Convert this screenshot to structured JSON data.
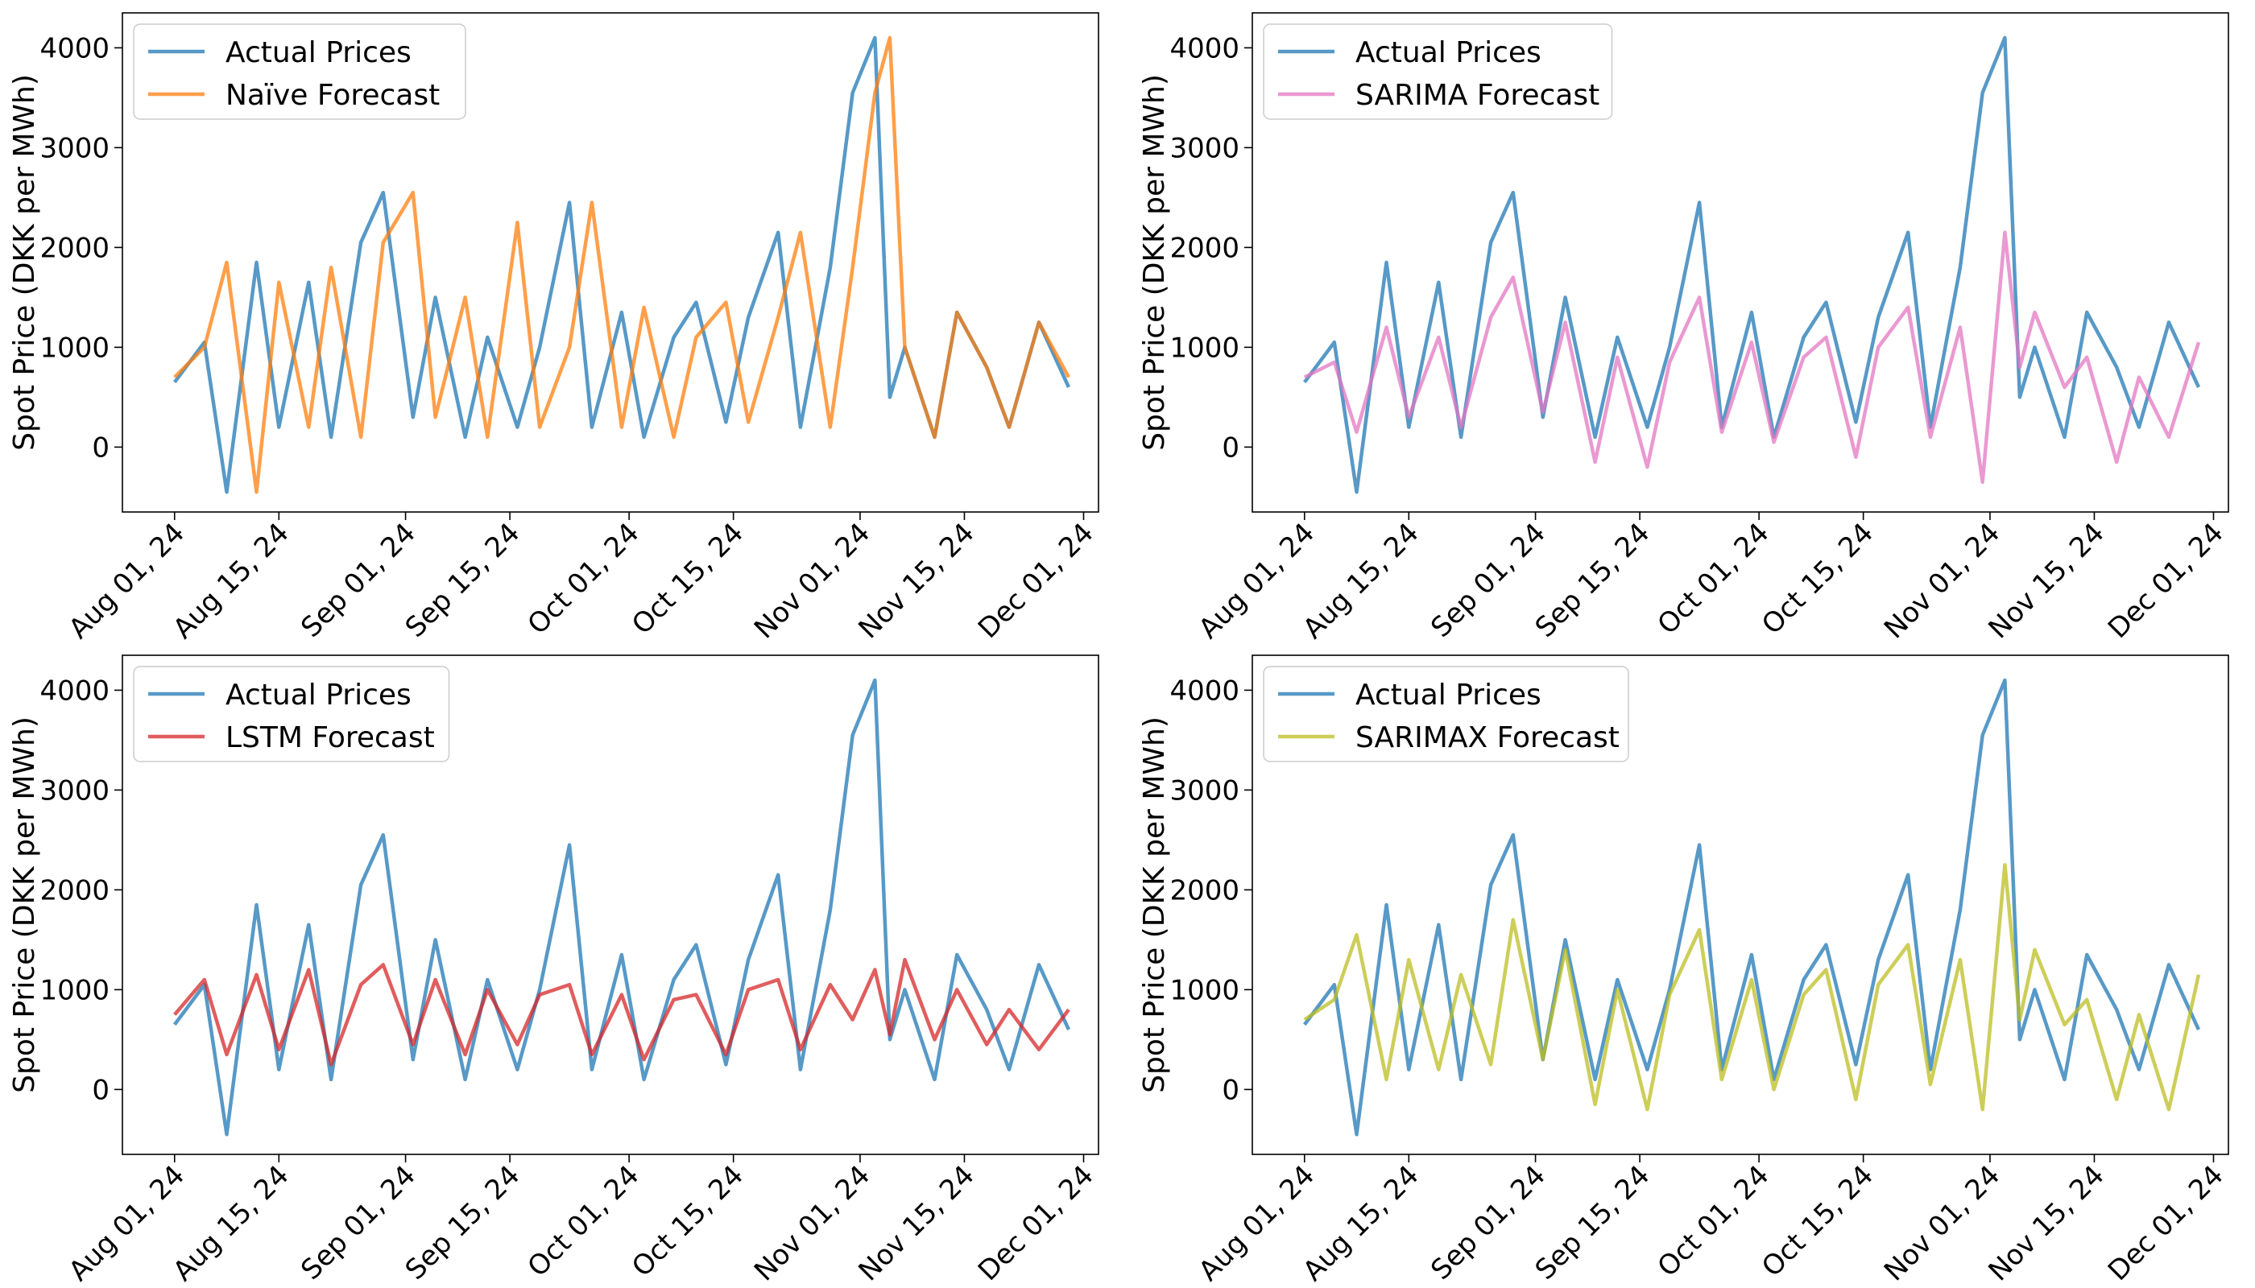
{
  "chart_data": [
    {
      "type": "line",
      "ylabel": "Spot Price (DKK per MWh)",
      "xlabel": "",
      "yticks": [
        0,
        1000,
        2000,
        3000,
        4000
      ],
      "ylim": [
        -650,
        4350
      ],
      "xticks": [
        "Aug 01, 24",
        "Aug 15, 24",
        "Sep 01, 24",
        "Sep 15, 24",
        "Oct 01, 24",
        "Oct 15, 24",
        "Nov 01, 24",
        "Nov 15, 24",
        "Dec 01, 24"
      ],
      "x_range": [
        "2024-07-25",
        "2024-12-03"
      ],
      "legend_position": "upper-left",
      "x": [
        "2024-08-01",
        "2024-08-05",
        "2024-08-08",
        "2024-08-12",
        "2024-08-15",
        "2024-08-19",
        "2024-08-22",
        "2024-08-26",
        "2024-08-29",
        "2024-09-02",
        "2024-09-05",
        "2024-09-09",
        "2024-09-12",
        "2024-09-16",
        "2024-09-19",
        "2024-09-23",
        "2024-09-26",
        "2024-09-30",
        "2024-10-03",
        "2024-10-07",
        "2024-10-10",
        "2024-10-14",
        "2024-10-17",
        "2024-10-21",
        "2024-10-24",
        "2024-10-28",
        "2024-10-31",
        "2024-11-03",
        "2024-11-05",
        "2024-11-07",
        "2024-11-11",
        "2024-11-14",
        "2024-11-18",
        "2024-11-21",
        "2024-11-25",
        "2024-11-29"
      ],
      "series": [
        {
          "name": "Actual Prices",
          "color": "#1f77b4",
          "values": [
            650,
            1050,
            -450,
            1850,
            200,
            1650,
            100,
            2050,
            2550,
            300,
            1500,
            100,
            1100,
            200,
            1000,
            2450,
            200,
            1350,
            100,
            1100,
            1450,
            250,
            1300,
            2150,
            200,
            1800,
            3550,
            4100,
            500,
            1000,
            100,
            1350,
            800,
            200,
            1250,
            600
          ]
        },
        {
          "name": "Naïve Forecast",
          "color": "#ff7f0e",
          "values": [
            700,
            1000,
            1850,
            -450,
            1650,
            200,
            1800,
            100,
            2050,
            2550,
            300,
            1500,
            100,
            2250,
            200,
            1000,
            2450,
            200,
            1400,
            100,
            1100,
            1450,
            250,
            1300,
            2150,
            200,
            1800,
            3550,
            4100,
            1000,
            100,
            1350,
            800,
            200,
            1250,
            700
          ]
        }
      ]
    },
    {
      "type": "line",
      "ylabel": "Spot Price (DKK per MWh)",
      "xlabel": "",
      "yticks": [
        0,
        1000,
        2000,
        3000,
        4000
      ],
      "ylim": [
        -650,
        4350
      ],
      "xticks": [
        "Aug 01, 24",
        "Aug 15, 24",
        "Sep 01, 24",
        "Sep 15, 24",
        "Oct 01, 24",
        "Oct 15, 24",
        "Nov 01, 24",
        "Nov 15, 24",
        "Dec 01, 24"
      ],
      "x_range": [
        "2024-07-25",
        "2024-12-03"
      ],
      "legend_position": "upper-left",
      "x": [
        "2024-08-01",
        "2024-08-05",
        "2024-08-08",
        "2024-08-12",
        "2024-08-15",
        "2024-08-19",
        "2024-08-22",
        "2024-08-26",
        "2024-08-29",
        "2024-09-02",
        "2024-09-05",
        "2024-09-09",
        "2024-09-12",
        "2024-09-16",
        "2024-09-19",
        "2024-09-23",
        "2024-09-26",
        "2024-09-30",
        "2024-10-03",
        "2024-10-07",
        "2024-10-10",
        "2024-10-14",
        "2024-10-17",
        "2024-10-21",
        "2024-10-24",
        "2024-10-28",
        "2024-10-31",
        "2024-11-03",
        "2024-11-05",
        "2024-11-07",
        "2024-11-11",
        "2024-11-14",
        "2024-11-18",
        "2024-11-21",
        "2024-11-25",
        "2024-11-29"
      ],
      "series": [
        {
          "name": "Actual Prices",
          "color": "#1f77b4",
          "values": [
            650,
            1050,
            -450,
            1850,
            200,
            1650,
            100,
            2050,
            2550,
            300,
            1500,
            100,
            1100,
            200,
            1000,
            2450,
            200,
            1350,
            100,
            1100,
            1450,
            250,
            1300,
            2150,
            200,
            1800,
            3550,
            4100,
            500,
            1000,
            100,
            1350,
            800,
            200,
            1250,
            600
          ]
        },
        {
          "name": "SARIMA Forecast",
          "color": "#e377c2",
          "values": [
            700,
            850,
            150,
            1200,
            300,
            1100,
            200,
            1300,
            1700,
            350,
            1250,
            -150,
            900,
            -200,
            850,
            1500,
            150,
            1050,
            50,
            900,
            1100,
            -100,
            1000,
            1400,
            100,
            1200,
            -350,
            2150,
            800,
            1350,
            600,
            900,
            -150,
            700,
            100,
            1050
          ]
        }
      ]
    },
    {
      "type": "line",
      "ylabel": "Spot Price (DKK per MWh)",
      "xlabel": "",
      "yticks": [
        0,
        1000,
        2000,
        3000,
        4000
      ],
      "ylim": [
        -650,
        4350
      ],
      "xticks": [
        "Aug 01, 24",
        "Aug 15, 24",
        "Sep 01, 24",
        "Sep 15, 24",
        "Oct 01, 24",
        "Oct 15, 24",
        "Nov 01, 24",
        "Nov 15, 24",
        "Dec 01, 24"
      ],
      "x_range": [
        "2024-07-25",
        "2024-12-03"
      ],
      "legend_position": "upper-left",
      "x": [
        "2024-08-01",
        "2024-08-05",
        "2024-08-08",
        "2024-08-12",
        "2024-08-15",
        "2024-08-19",
        "2024-08-22",
        "2024-08-26",
        "2024-08-29",
        "2024-09-02",
        "2024-09-05",
        "2024-09-09",
        "2024-09-12",
        "2024-09-16",
        "2024-09-19",
        "2024-09-23",
        "2024-09-26",
        "2024-09-30",
        "2024-10-03",
        "2024-10-07",
        "2024-10-10",
        "2024-10-14",
        "2024-10-17",
        "2024-10-21",
        "2024-10-24",
        "2024-10-28",
        "2024-10-31",
        "2024-11-03",
        "2024-11-05",
        "2024-11-07",
        "2024-11-11",
        "2024-11-14",
        "2024-11-18",
        "2024-11-21",
        "2024-11-25",
        "2024-11-29"
      ],
      "series": [
        {
          "name": "Actual Prices",
          "color": "#1f77b4",
          "values": [
            650,
            1050,
            -450,
            1850,
            200,
            1650,
            100,
            2050,
            2550,
            300,
            1500,
            100,
            1100,
            200,
            1000,
            2450,
            200,
            1350,
            100,
            1100,
            1450,
            250,
            1300,
            2150,
            200,
            1800,
            3550,
            4100,
            500,
            1000,
            100,
            1350,
            800,
            200,
            1250,
            600
          ]
        },
        {
          "name": "LSTM Forecast",
          "color": "#d62728",
          "values": [
            750,
            1100,
            350,
            1150,
            400,
            1200,
            250,
            1050,
            1250,
            450,
            1100,
            350,
            1000,
            450,
            950,
            1050,
            350,
            950,
            300,
            900,
            950,
            350,
            1000,
            1100,
            400,
            1050,
            700,
            1200,
            550,
            1300,
            500,
            1000,
            450,
            800,
            400,
            800
          ]
        }
      ]
    },
    {
      "type": "line",
      "ylabel": "Spot Price (DKK per MWh)",
      "xlabel": "",
      "yticks": [
        0,
        1000,
        2000,
        3000,
        4000
      ],
      "ylim": [
        -650,
        4350
      ],
      "xticks": [
        "Aug 01, 24",
        "Aug 15, 24",
        "Sep 01, 24",
        "Sep 15, 24",
        "Oct 01, 24",
        "Oct 15, 24",
        "Nov 01, 24",
        "Nov 15, 24",
        "Dec 01, 24"
      ],
      "x_range": [
        "2024-07-25",
        "2024-12-03"
      ],
      "legend_position": "upper-left",
      "x": [
        "2024-08-01",
        "2024-08-05",
        "2024-08-08",
        "2024-08-12",
        "2024-08-15",
        "2024-08-19",
        "2024-08-22",
        "2024-08-26",
        "2024-08-29",
        "2024-09-02",
        "2024-09-05",
        "2024-09-09",
        "2024-09-12",
        "2024-09-16",
        "2024-09-19",
        "2024-09-23",
        "2024-09-26",
        "2024-09-30",
        "2024-10-03",
        "2024-10-07",
        "2024-10-10",
        "2024-10-14",
        "2024-10-17",
        "2024-10-21",
        "2024-10-24",
        "2024-10-28",
        "2024-10-31",
        "2024-11-03",
        "2024-11-05",
        "2024-11-07",
        "2024-11-11",
        "2024-11-14",
        "2024-11-18",
        "2024-11-21",
        "2024-11-25",
        "2024-11-29"
      ],
      "series": [
        {
          "name": "Actual Prices",
          "color": "#1f77b4",
          "values": [
            650,
            1050,
            -450,
            1850,
            200,
            1650,
            100,
            2050,
            2550,
            300,
            1500,
            100,
            1100,
            200,
            1000,
            2450,
            200,
            1350,
            100,
            1100,
            1450,
            250,
            1300,
            2150,
            200,
            1800,
            3550,
            4100,
            500,
            1000,
            100,
            1350,
            800,
            200,
            1250,
            600
          ]
        },
        {
          "name": "SARIMAX Forecast",
          "color": "#bcbd22",
          "values": [
            700,
            900,
            1550,
            100,
            1300,
            200,
            1150,
            250,
            1700,
            300,
            1400,
            -150,
            1000,
            -200,
            950,
            1600,
            100,
            1100,
            0,
            950,
            1200,
            -100,
            1050,
            1450,
            50,
            1300,
            -200,
            2250,
            700,
            1400,
            650,
            900,
            -100,
            750,
            -200,
            1150
          ]
        }
      ]
    }
  ]
}
